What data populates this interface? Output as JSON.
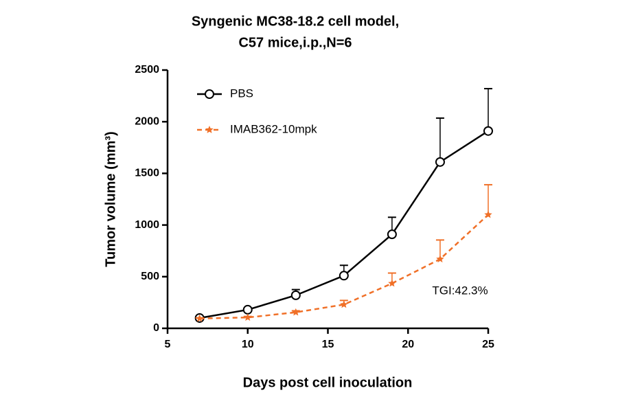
{
  "chart_data": {
    "type": "line",
    "title": [
      "Syngenic MC38-18.2 cell model,",
      "C57 mice,i.p.,N=6"
    ],
    "xlabel": "Days post cell inoculation",
    "ylabel": "Tumor volume (mm³)",
    "annotation": "TGI:42.3%",
    "x": [
      7,
      10,
      13,
      16,
      19,
      22,
      25
    ],
    "series": [
      {
        "name": "PBS",
        "color": "#000000",
        "marker": "circle",
        "dashed": false,
        "values": [
          100,
          180,
          320,
          510,
          910,
          1610,
          1910
        ],
        "errors": [
          5,
          15,
          55,
          100,
          165,
          425,
          410
        ]
      },
      {
        "name": "IMAB362-10mpk",
        "color": "#f07028",
        "marker": "star",
        "dashed": true,
        "values": [
          95,
          105,
          155,
          230,
          435,
          670,
          1100
        ],
        "errors": [
          5,
          10,
          15,
          40,
          100,
          185,
          290
        ]
      }
    ],
    "xlim": [
      5,
      25
    ],
    "xticks": [
      5,
      10,
      15,
      20,
      25
    ],
    "ylim": [
      0,
      2500
    ],
    "yticks": [
      0,
      500,
      1000,
      1500,
      2000,
      2500
    ],
    "legend": "upper left"
  }
}
